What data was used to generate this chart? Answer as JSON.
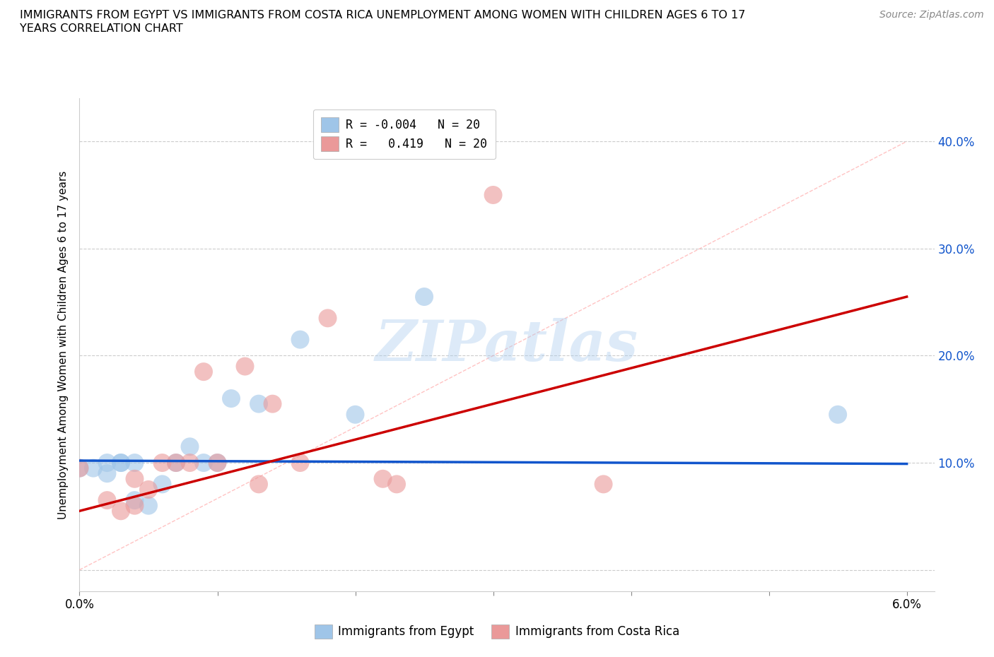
{
  "title_line1": "IMMIGRANTS FROM EGYPT VS IMMIGRANTS FROM COSTA RICA UNEMPLOYMENT AMONG WOMEN WITH CHILDREN AGES 6 TO 17",
  "title_line2": "YEARS CORRELATION CHART",
  "source": "Source: ZipAtlas.com",
  "ylabel": "Unemployment Among Women with Children Ages 6 to 17 years",
  "xlim": [
    0.0,
    0.062
  ],
  "ylim": [
    -0.02,
    0.44
  ],
  "plot_xlim": [
    0.0,
    0.06
  ],
  "plot_ylim": [
    0.0,
    0.42
  ],
  "egypt_color": "#9fc5e8",
  "costa_rica_color": "#ea9999",
  "egypt_line_color": "#1155cc",
  "costa_rica_line_color": "#cc0000",
  "egypt_R": "-0.004",
  "egypt_N": 20,
  "costa_rica_R": "0.419",
  "costa_rica_N": 20,
  "watermark_text": "ZIPatlas",
  "egypt_points_x": [
    0.0,
    0.001,
    0.002,
    0.002,
    0.003,
    0.003,
    0.004,
    0.004,
    0.005,
    0.006,
    0.007,
    0.008,
    0.009,
    0.01,
    0.011,
    0.013,
    0.016,
    0.02,
    0.025,
    0.055
  ],
  "egypt_points_y": [
    0.095,
    0.095,
    0.09,
    0.1,
    0.1,
    0.1,
    0.065,
    0.1,
    0.06,
    0.08,
    0.1,
    0.115,
    0.1,
    0.1,
    0.16,
    0.155,
    0.215,
    0.145,
    0.255,
    0.145
  ],
  "costa_rica_points_x": [
    0.0,
    0.002,
    0.003,
    0.004,
    0.004,
    0.005,
    0.006,
    0.007,
    0.008,
    0.009,
    0.01,
    0.012,
    0.013,
    0.014,
    0.016,
    0.018,
    0.022,
    0.023,
    0.03,
    0.038
  ],
  "costa_rica_points_y": [
    0.095,
    0.065,
    0.055,
    0.06,
    0.085,
    0.075,
    0.1,
    0.1,
    0.1,
    0.185,
    0.1,
    0.19,
    0.08,
    0.155,
    0.1,
    0.235,
    0.085,
    0.08,
    0.35,
    0.08
  ],
  "egypt_line_x": [
    0.0,
    0.06
  ],
  "egypt_line_y": [
    0.102,
    0.099
  ],
  "costa_rica_line_x": [
    0.0,
    0.06
  ],
  "costa_rica_line_y": [
    0.055,
    0.255
  ],
  "diag_line_x": [
    0.0,
    0.06
  ],
  "diag_line_y": [
    0.0,
    0.4
  ],
  "ytick_positions": [
    0.0,
    0.1,
    0.2,
    0.3,
    0.4
  ],
  "right_ytick_labels": [
    "",
    "10.0%",
    "20.0%",
    "30.0%",
    "40.0%"
  ],
  "left_ytick_labels": [
    "",
    "",
    "",
    "",
    ""
  ],
  "xtick_positions": [
    0.0,
    0.01,
    0.02,
    0.03,
    0.04,
    0.05,
    0.06
  ],
  "xtick_labels": [
    "0.0%",
    "",
    "",
    "",
    "",
    "",
    "6.0%"
  ]
}
